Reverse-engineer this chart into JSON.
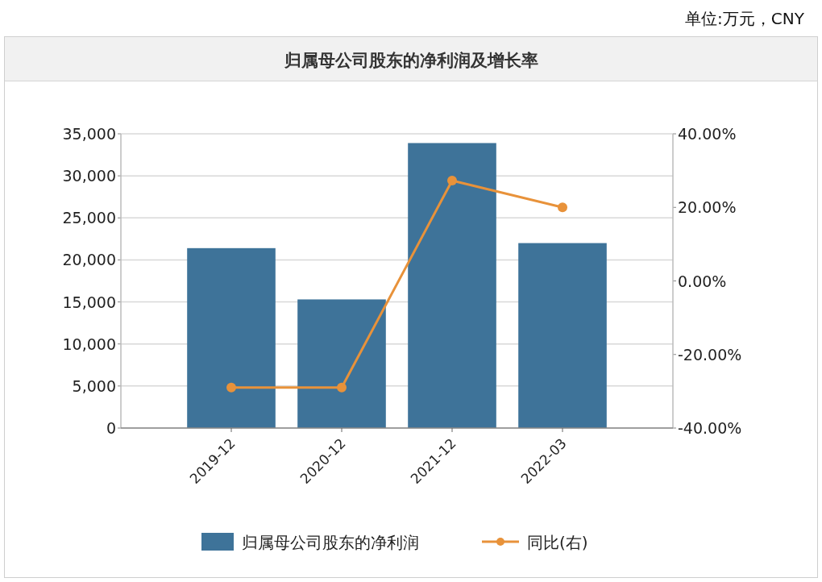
{
  "chart_data": {
    "type": "bar",
    "title": "归属母公司股东的净利润及增长率",
    "annotations": [
      "单位:万元，CNY"
    ],
    "categories": [
      "2019-12",
      "2020-12",
      "2021-12",
      "2022-03"
    ],
    "series": [
      {
        "name": "归属母公司股东的净利润",
        "color": "#3e7399",
        "values": [
          21400,
          15300,
          33900,
          22000
        ]
      },
      {
        "name": "同比(右)",
        "type": "line",
        "axis": "y2",
        "color": "#e8923a",
        "marker": "circle",
        "values": [
          -29.0,
          -29.0,
          27.3,
          20.0
        ]
      }
    ],
    "ylim": [
      0,
      35000
    ],
    "yticks": [
      {
        "value": 0,
        "label": "0"
      },
      {
        "value": 5000,
        "label": "5,000"
      },
      {
        "value": 10000,
        "label": "10,000"
      },
      {
        "value": 15000,
        "label": "15,000"
      },
      {
        "value": 20000,
        "label": "20,000"
      },
      {
        "value": 25000,
        "label": "25,000"
      },
      {
        "value": 30000,
        "label": "30,000"
      },
      {
        "value": 35000,
        "label": "35,000"
      }
    ],
    "y2lim": [
      -40,
      40
    ],
    "y2ticks": [
      {
        "value": -40,
        "label": "-40.00%"
      },
      {
        "value": -20,
        "label": "-20.00%"
      },
      {
        "value": 0,
        "label": "0.00%"
      },
      {
        "value": 20,
        "label": "20.00%"
      },
      {
        "value": 40,
        "label": "40.00%"
      }
    ],
    "grid": "y",
    "legend": "bottom"
  }
}
